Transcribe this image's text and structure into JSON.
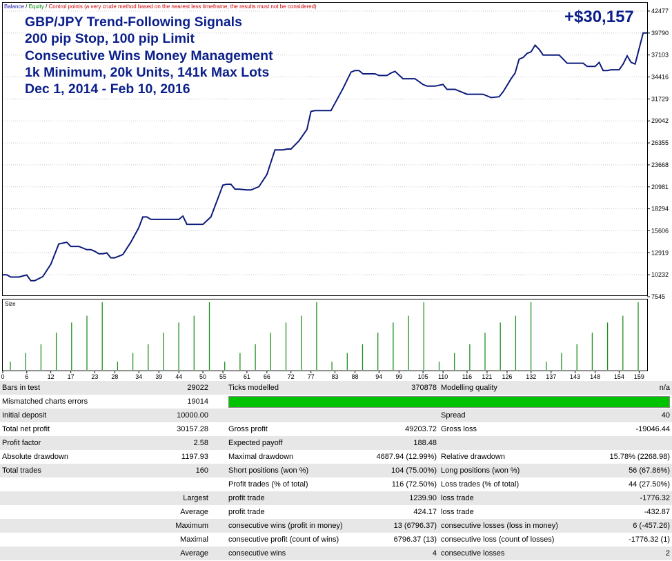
{
  "legend": {
    "balance": "Balance",
    "sep1": " / ",
    "equity": "Equity",
    "sep2": " / ",
    "control": "Control points (a very crude method based on the nearest less timeframe, the results must not be considered)",
    "colors": {
      "balance": "#1a1aa6",
      "equity": "#008a00",
      "control": "#d10000"
    }
  },
  "title_lines": [
    "GBP/JPY Trend-Following Signals",
    "200 pip Stop, 100 pip Limit",
    "Consecutive Wins Money Management",
    "1k Minimum, 20k Units, 141k Max Lots",
    "Dec 1, 2014 - Feb 10, 2016"
  ],
  "profit_label": "+$30,157",
  "size_label": "Size",
  "chart_data": {
    "type": "line",
    "y_tick_labels": [
      "42477",
      "39790",
      "37103",
      "34416",
      "31729",
      "29042",
      "26355",
      "23668",
      "20981",
      "18294",
      "15606",
      "12919",
      "10232",
      "7545"
    ],
    "ylim": [
      7545,
      42477
    ],
    "x_tick_labels": [
      "0",
      "6",
      "12",
      "17",
      "23",
      "28",
      "34",
      "39",
      "44",
      "50",
      "55",
      "61",
      "66",
      "72",
      "77",
      "83",
      "88",
      "94",
      "99",
      "105",
      "110",
      "116",
      "121",
      "126",
      "132",
      "137",
      "143",
      "148",
      "154",
      "159"
    ],
    "xlim": [
      0,
      161
    ],
    "grid": true,
    "series": [
      {
        "color": "#0b1a7a",
        "x": [
          0,
          1,
          2,
          4,
          6,
          7,
          8,
          10,
          12,
          14,
          15,
          16,
          17,
          18,
          19,
          21,
          22,
          23,
          24,
          25,
          26,
          27,
          28,
          30,
          32,
          34,
          35,
          36,
          37,
          39,
          41,
          42,
          44,
          45,
          46,
          48,
          50,
          52,
          53,
          55,
          56,
          57,
          58,
          59,
          61,
          62,
          64,
          66,
          67,
          68,
          70,
          71,
          72,
          74,
          76,
          77,
          78,
          80,
          82,
          85,
          87,
          88,
          89,
          90,
          93,
          94,
          96,
          97,
          98,
          100,
          101,
          103,
          105,
          106,
          108,
          110,
          111,
          113,
          116,
          118,
          120,
          122,
          124,
          125,
          127,
          128,
          129,
          130,
          131,
          132,
          133,
          134,
          135,
          137,
          139,
          141,
          143,
          145,
          146,
          148,
          149,
          150,
          151,
          152,
          154,
          155,
          156,
          157,
          158,
          160,
          161
        ],
        "y": [
          10232,
          10232,
          9950,
          9950,
          10200,
          9500,
          9500,
          10000,
          11500,
          14000,
          14100,
          14200,
          13700,
          13700,
          13700,
          13300,
          13300,
          13100,
          12800,
          12800,
          12900,
          12300,
          12300,
          12700,
          14200,
          16000,
          17300,
          17300,
          17000,
          17000,
          17000,
          17000,
          17000,
          17400,
          16400,
          16400,
          16400,
          17300,
          18600,
          21200,
          21300,
          21300,
          20700,
          20700,
          20600,
          20600,
          21000,
          22500,
          24000,
          25500,
          25500,
          25600,
          25600,
          26600,
          28000,
          30200,
          30300,
          30300,
          30300,
          33000,
          35000,
          35200,
          35200,
          34800,
          34800,
          34600,
          34600,
          34900,
          35100,
          34200,
          34200,
          34200,
          33500,
          33300,
          33300,
          33500,
          32900,
          32900,
          32300,
          32300,
          32300,
          31900,
          32000,
          32600,
          34200,
          34900,
          36600,
          36800,
          37300,
          37500,
          38300,
          37800,
          37100,
          37100,
          37100,
          36100,
          36100,
          36100,
          35700,
          35700,
          36200,
          35200,
          35200,
          35300,
          35300,
          36000,
          37000,
          36200,
          36000,
          39800,
          39800
        ]
      }
    ]
  },
  "size_chart": {
    "ylim": [
      0,
      100
    ],
    "bars": [
      12,
      25,
      38,
      55,
      70,
      80,
      100,
      12,
      25,
      38,
      55,
      70,
      80,
      100,
      12,
      25,
      38,
      55,
      70,
      80,
      100,
      12,
      25,
      38,
      55,
      70,
      80,
      100,
      12,
      25,
      38,
      55,
      70,
      80,
      100,
      12,
      25,
      38,
      55,
      70,
      80,
      100
    ]
  },
  "stats": {
    "rows": [
      [
        "Bars in test",
        "29022",
        "Ticks modelled",
        "370878",
        "Modelling quality",
        "n/a"
      ],
      [
        "Mismatched charts errors",
        "19014",
        "",
        "",
        "",
        ""
      ],
      [
        "Initial deposit",
        "10000.00",
        "",
        "",
        "Spread",
        "40"
      ],
      [
        "Total net profit",
        "30157.28",
        "Gross profit",
        "49203.72",
        "Gross loss",
        "-19046.44"
      ],
      [
        "Profit factor",
        "2.58",
        "Expected payoff",
        "188.48",
        "",
        ""
      ],
      [
        "Absolute drawdown",
        "1197.93",
        "Maximal drawdown",
        "4687.94 (12.99%)",
        "Relative drawdown",
        "15.78% (2268.98)"
      ],
      [
        "Total trades",
        "160",
        "Short positions (won %)",
        "104 (75.00%)",
        "Long positions (won %)",
        "56 (67.86%)"
      ],
      [
        "",
        "",
        "Profit trades (% of total)",
        "116 (72.50%)",
        "Loss trades (% of total)",
        "44 (27.50%)"
      ],
      [
        "",
        "Largest",
        "profit trade",
        "1239.90",
        "loss trade",
        "-1776.32"
      ],
      [
        "",
        "Average",
        "profit trade",
        "424.17",
        "loss trade",
        "-432.87"
      ],
      [
        "",
        "Maximum",
        "consecutive wins (profit in money)",
        "13 (6796.37)",
        "consecutive losses (loss in money)",
        "6 (-457.26)"
      ],
      [
        "",
        "Maximal",
        "consecutive profit (count of wins)",
        "6796.37 (13)",
        "consecutive loss (count of losses)",
        "-1776.32 (1)"
      ],
      [
        "",
        "Average",
        "consecutive wins",
        "4",
        "consecutive losses",
        "2"
      ]
    ],
    "quality_bar_color": "#00c300"
  }
}
